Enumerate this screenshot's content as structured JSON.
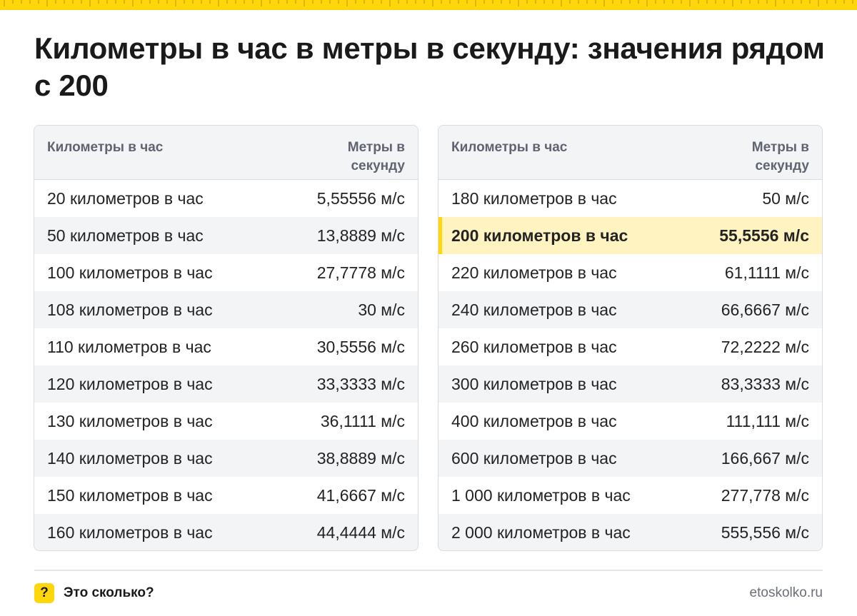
{
  "title": "Километры в час в метры в секунду: значения рядом с 200",
  "table_left": {
    "header": {
      "col1": "Километры в час",
      "col2": "Метры в секунду"
    },
    "rows": [
      {
        "from": "20 километров в час",
        "to": "5,55556 м/с"
      },
      {
        "from": "50 километров в час",
        "to": "13,8889 м/с"
      },
      {
        "from": "100 километров в час",
        "to": "27,7778 м/с"
      },
      {
        "from": "108 километров в час",
        "to": "30 м/с"
      },
      {
        "from": "110 километров в час",
        "to": "30,5556 м/с"
      },
      {
        "from": "120 километров в час",
        "to": "33,3333 м/с"
      },
      {
        "from": "130 километров в час",
        "to": "36,1111 м/с"
      },
      {
        "from": "140 километров в час",
        "to": "38,8889 м/с"
      },
      {
        "from": "150 километров в час",
        "to": "41,6667 м/с"
      },
      {
        "from": "160 километров в час",
        "to": "44,4444 м/с"
      }
    ]
  },
  "table_right": {
    "header": {
      "col1": "Километры в час",
      "col2": "Метры в секунду"
    },
    "rows": [
      {
        "from": "180 километров в час",
        "to": "50 м/с"
      },
      {
        "from": "200 километров в час",
        "to": "55,5556 м/с",
        "highlight": true
      },
      {
        "from": "220 километров в час",
        "to": "61,1111 м/с"
      },
      {
        "from": "240 километров в час",
        "to": "66,6667 м/с"
      },
      {
        "from": "260 километров в час",
        "to": "72,2222 м/с"
      },
      {
        "from": "300 километров в час",
        "to": "83,3333 м/с"
      },
      {
        "from": "400 километров в час",
        "to": "111,111 м/с"
      },
      {
        "from": "600 километров в час",
        "to": "166,667 м/с"
      },
      {
        "from": "1 000 километров в час",
        "to": "277,778 м/с"
      },
      {
        "from": "2 000 километров в час",
        "to": "555,556 м/с"
      }
    ]
  },
  "footer": {
    "badge": "?",
    "brand": "Это сколько?",
    "site": "etoskolko.ru"
  },
  "colors": {
    "accent": "#ffd60a",
    "highlight_row": "#fff3c2",
    "header_bg": "#f3f4f6"
  }
}
